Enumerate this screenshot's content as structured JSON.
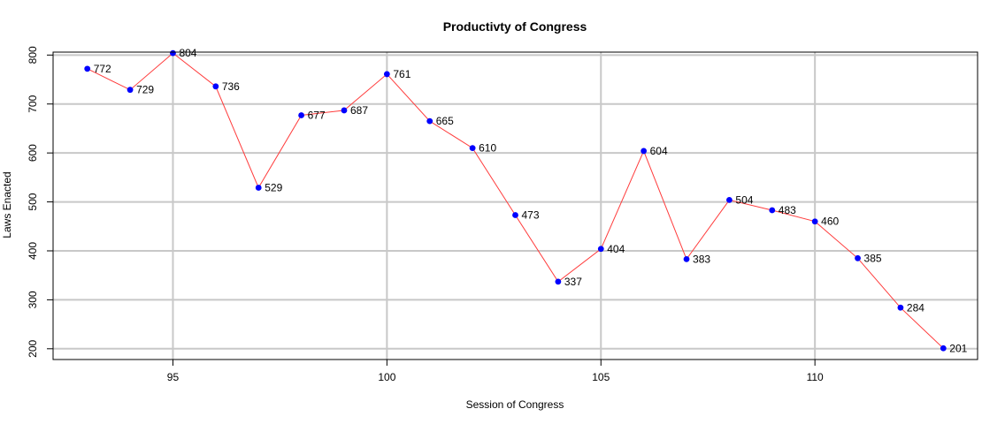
{
  "chart_data": {
    "type": "line",
    "title": "Productivty of Congress",
    "xlabel": "Session of Congress",
    "ylabel": "Laws Enacted",
    "x": [
      93,
      94,
      95,
      96,
      97,
      98,
      99,
      100,
      101,
      102,
      103,
      104,
      105,
      106,
      107,
      108,
      109,
      110,
      111,
      112,
      113
    ],
    "series": [
      {
        "values": [
          772,
          729,
          804,
          736,
          529,
          677,
          687,
          761,
          665,
          610,
          473,
          337,
          404,
          604,
          383,
          504,
          483,
          460,
          385,
          284,
          201
        ],
        "line_color": "#ff3b3b",
        "point_color": "#0000ff"
      }
    ],
    "xlim": [
      92.2,
      113.8
    ],
    "ylim": [
      178,
      806
    ],
    "xticks": [
      95,
      100,
      105,
      110
    ],
    "yticks": [
      200,
      300,
      400,
      500,
      600,
      700,
      800
    ],
    "grid": true,
    "grid_color": "#c8c8c8",
    "data_labels": true
  }
}
